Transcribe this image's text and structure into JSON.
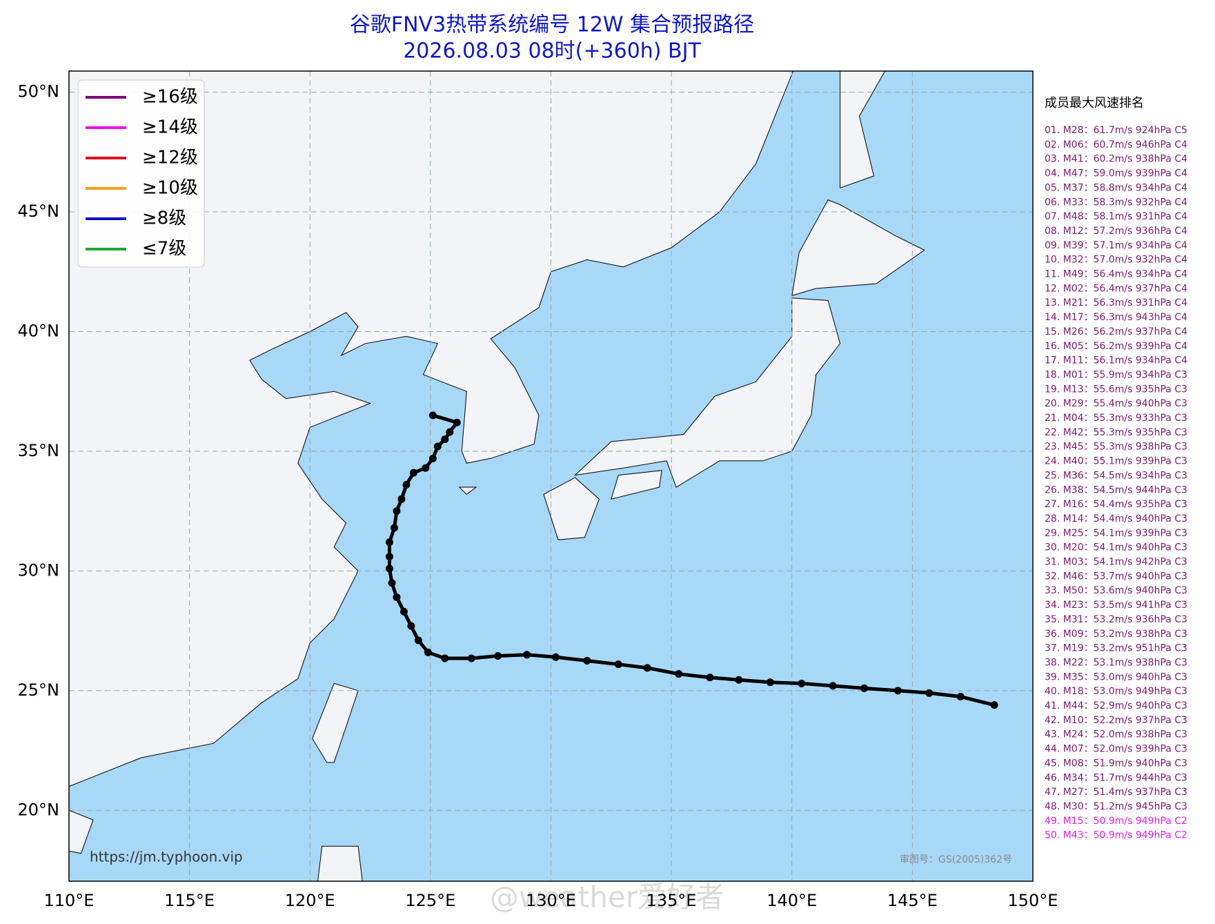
{
  "title": "谷歌FNV3热带系统编号 12W 集合预报路径",
  "subtitle": "2026.08.03 08时(+360h) BJT",
  "map": {
    "xlim": [
      110,
      150
    ],
    "ylim": [
      17.04,
      50.88
    ],
    "xticks": [
      {
        "value": 110,
        "label": "110°E"
      },
      {
        "value": 115,
        "label": "115°E"
      },
      {
        "value": 120,
        "label": "120°E"
      },
      {
        "value": 125,
        "label": "125°E"
      },
      {
        "value": 130,
        "label": "130°E"
      },
      {
        "value": 135,
        "label": "135°E"
      },
      {
        "value": 140,
        "label": "140°E"
      },
      {
        "value": 145,
        "label": "145°E"
      },
      {
        "value": 150,
        "label": "150°E"
      }
    ],
    "yticks": [
      {
        "value": 20,
        "label": "20°N"
      },
      {
        "value": 25,
        "label": "25°N"
      },
      {
        "value": 30,
        "label": "30°N"
      },
      {
        "value": 35,
        "label": "35°N"
      },
      {
        "value": 40,
        "label": "40°N"
      },
      {
        "value": 45,
        "label": "45°N"
      },
      {
        "value": 50,
        "label": "50°N"
      }
    ]
  },
  "legend": [
    {
      "name": "≥16级",
      "color": "#7b0a78"
    },
    {
      "name": "≥14级",
      "color": "#f010f0"
    },
    {
      "name": "≥12级",
      "color": "#e01020"
    },
    {
      "name": "≥10级",
      "color": "#f0a020"
    },
    {
      "name": "≥8级",
      "color": "#1010c8"
    },
    {
      "name": "≤7级",
      "color": "#20a830"
    }
  ],
  "mean_track": {
    "color": "#000000",
    "lon": [
      148.4,
      147,
      145.7,
      144.4,
      143,
      141.7,
      140.4,
      139.1,
      137.8,
      136.6,
      135.3,
      134,
      132.8,
      131.5,
      130.2,
      129,
      127.8,
      126.7,
      125.6,
      124.9,
      124.5,
      124.2,
      123.9,
      123.6,
      123.4,
      123.3,
      123.3,
      123.3,
      123.5,
      123.6,
      123.8,
      124,
      124.3,
      124.8,
      125.1,
      125.3,
      125.6,
      125.8,
      126.1,
      125.1
    ],
    "lat": [
      24.4,
      24.75,
      24.9,
      25,
      25.1,
      25.2,
      25.3,
      25.35,
      25.45,
      25.55,
      25.7,
      25.95,
      26.1,
      26.25,
      26.4,
      26.5,
      26.45,
      26.35,
      26.35,
      26.6,
      27.1,
      27.7,
      28.3,
      28.9,
      29.5,
      30.1,
      30.6,
      31.2,
      31.8,
      32.5,
      33,
      33.6,
      34.1,
      34.3,
      34.7,
      35.2,
      35.5,
      35.8,
      36.2,
      36.5
    ]
  },
  "ranking": {
    "title": "成员最大风速排名",
    "groups": [
      {
        "color": "#7a1a6e",
        "items": [
          "01. M28：61.7m/s 924hPa C5",
          "02. M06：60.7m/s 946hPa C4",
          "03. M41：60.2m/s 938hPa C4",
          "04. M47：59.0m/s 939hPa C4",
          "05. M37：58.8m/s 934hPa C4",
          "06. M33：58.3m/s 932hPa C4",
          "07. M48：58.1m/s 931hPa C4",
          "08. M12：57.2m/s 936hPa C4",
          "09. M39：57.1m/s 934hPa C4",
          "10. M32：57.0m/s 932hPa C4",
          "11. M49：56.4m/s 934hPa C4",
          "12. M02：56.4m/s 937hPa C4",
          "13. M21：56.3m/s 931hPa C4",
          "14. M17：56.3m/s 943hPa C4",
          "15. M26：56.2m/s 937hPa C4",
          "16. M05：56.2m/s 939hPa C4",
          "17. M11：56.1m/s 934hPa C4",
          "18. M01：55.9m/s 934hPa C3",
          "19. M13：55.6m/s 935hPa C3",
          "20. M29：55.4m/s 940hPa C3",
          "21. M04：55.3m/s 933hPa C3",
          "22. M42：55.3m/s 935hPa C3",
          "23. M45：55.3m/s 938hPa C3",
          "24. M40：55.1m/s 939hPa C3",
          "25. M36：54.5m/s 934hPa C3",
          "26. M38：54.5m/s 944hPa C3",
          "27. M16：54.4m/s 935hPa C3",
          "28. M14：54.4m/s 940hPa C3",
          "29. M25：54.1m/s 939hPa C3",
          "30. M20：54.1m/s 940hPa C3",
          "31. M03：54.1m/s 942hPa C3",
          "32. M46：53.7m/s 940hPa C3",
          "33. M50：53.6m/s 940hPa C3",
          "34. M23：53.5m/s 941hPa C3",
          "35. M31：53.2m/s 936hPa C3",
          "36. M09：53.2m/s 938hPa C3",
          "37. M19：53.2m/s 951hPa C3",
          "38. M22：53.1m/s 938hPa C3",
          "39. M35：53.0m/s 940hPa C3",
          "40. M18：53.0m/s 949hPa C3",
          "41. M44：52.9m/s 940hPa C3",
          "42. M10：52.2m/s 937hPa C3",
          "43. M24：52.0m/s 938hPa C3",
          "44. M07：52.0m/s 939hPa C3",
          "45. M08：51.9m/s 940hPa C3",
          "46. M34：51.7m/s 944hPa C3",
          "47. M27：51.4m/s 937hPa C3",
          "48. M30：51.2m/s 945hPa C3"
        ]
      },
      {
        "color": "#e020e0",
        "items": [
          "49. M15：50.9m/s 949hPa C2",
          "50. M43：50.9m/s 949hPa C2"
        ]
      }
    ]
  },
  "source_url": "https://jm.typhoon.vip",
  "approval": "审图号：GS(2005)362号",
  "watermark": "@weather爱好者"
}
